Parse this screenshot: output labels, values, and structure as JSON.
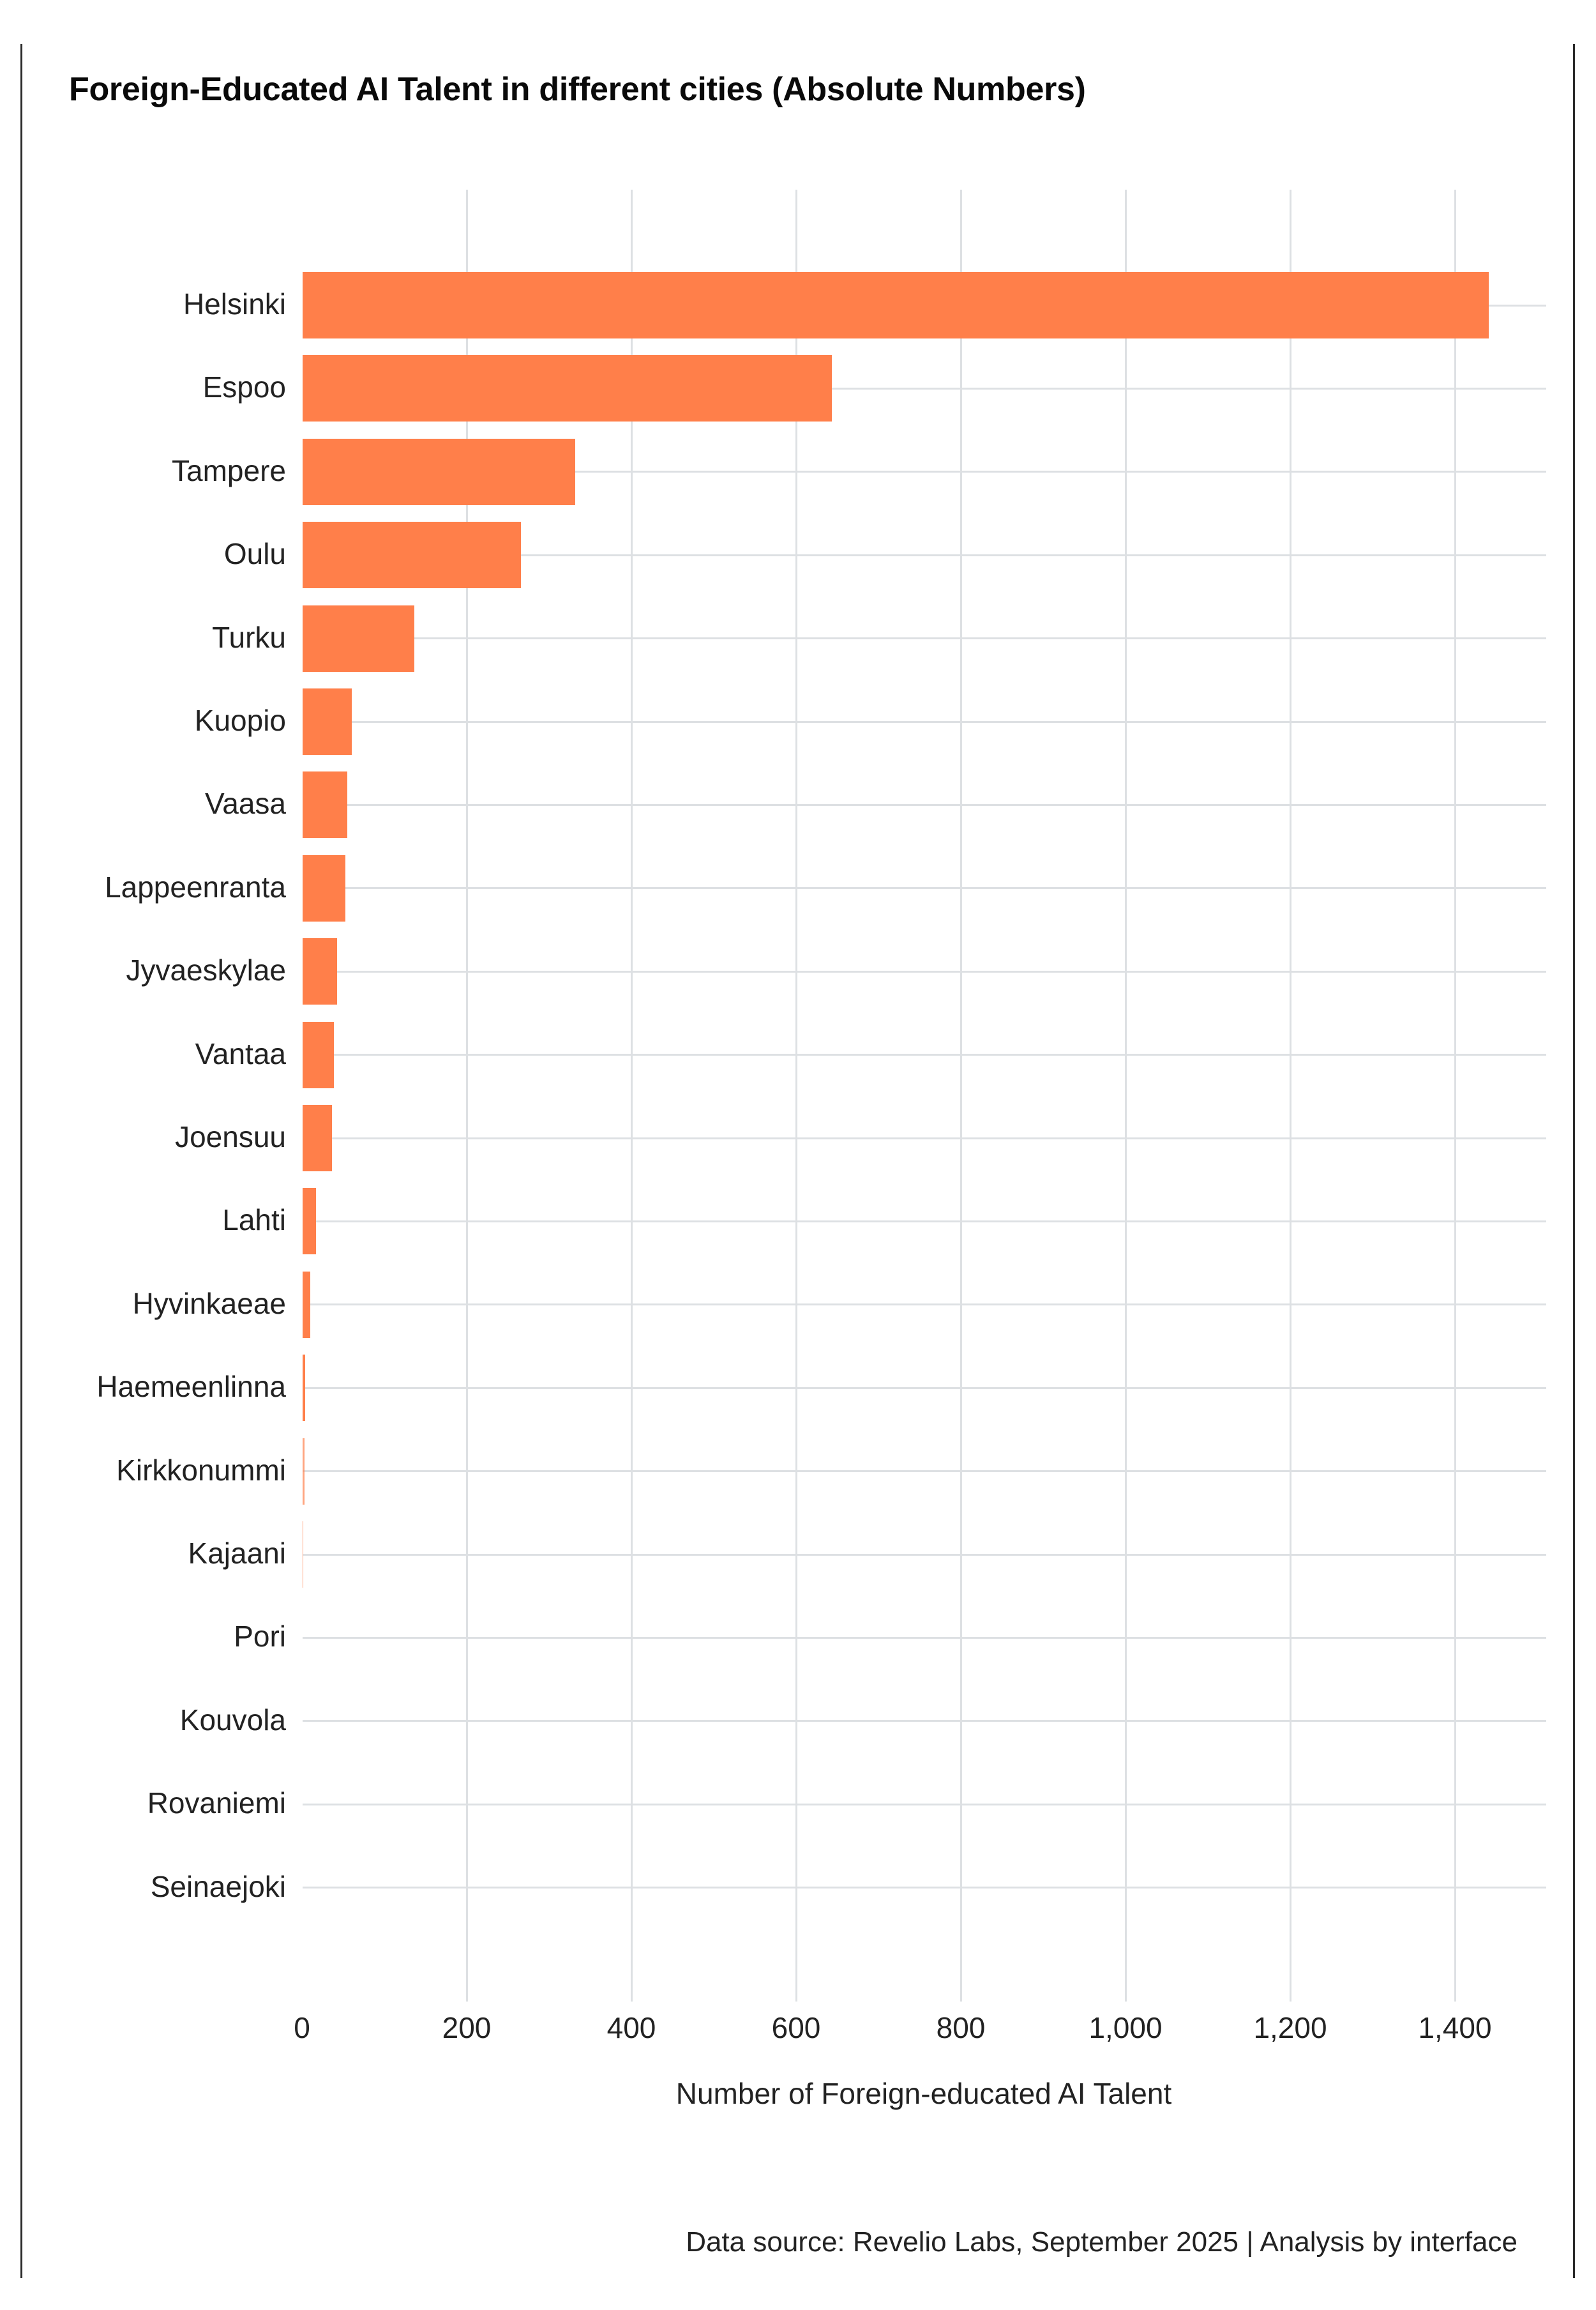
{
  "chart_data": {
    "type": "bar",
    "orientation": "horizontal",
    "title": "Foreign-Educated AI Talent in different cities (Absolute Numbers)",
    "xlabel": "Number of Foreign-educated AI Talent",
    "ylabel": "",
    "categories": [
      "Helsinki",
      "Espoo",
      "Tampere",
      "Oulu",
      "Turku",
      "Kuopio",
      "Vaasa",
      "Lappeenranta",
      "Jyvaeskylae",
      "Vantaa",
      "Joensuu",
      "Lahti",
      "Hyvinkaeae",
      "Haemeenlinna",
      "Kirkkonummi",
      "Kajaani",
      "Pori",
      "Kouvola",
      "Rovaniemi",
      "Seinaejoki"
    ],
    "values": [
      1440,
      643,
      331,
      265,
      136,
      60,
      54,
      52,
      42,
      38,
      36,
      16,
      9,
      3,
      2,
      1,
      0,
      0,
      0,
      0
    ],
    "xlim": [
      0,
      1500
    ],
    "xticks": [
      0,
      200,
      400,
      600,
      800,
      1000,
      1200,
      1400
    ],
    "xtick_labels": [
      "0",
      "200",
      "400",
      "600",
      "800",
      "1,000",
      "1,200",
      "1,400"
    ],
    "grid": true,
    "legend": null,
    "bar_color": "#FF7F4A",
    "source_note": "Data source: Revelio Labs, September 2025 | Analysis by interface"
  },
  "header": {
    "title": "Foreign-Educated AI Talent in different cities (Absolute Numbers)"
  },
  "axis": {
    "x_title": "Number of Foreign-educated AI Talent",
    "ticks": [
      {
        "label": "0",
        "value": 0
      },
      {
        "label": "200",
        "value": 200
      },
      {
        "label": "400",
        "value": 400
      },
      {
        "label": "600",
        "value": 600
      },
      {
        "label": "800",
        "value": 800
      },
      {
        "label": "1,000",
        "value": 1000
      },
      {
        "label": "1,200",
        "value": 1200
      },
      {
        "label": "1,400",
        "value": 1400
      }
    ]
  },
  "footer": {
    "source": "Data source: Revelio Labs, September 2025 | Analysis by interface"
  },
  "colors": {
    "bar": "#FF7F4A",
    "grid": "#DDE0E3",
    "text": "#222222",
    "frame": "#2B2B2B"
  }
}
